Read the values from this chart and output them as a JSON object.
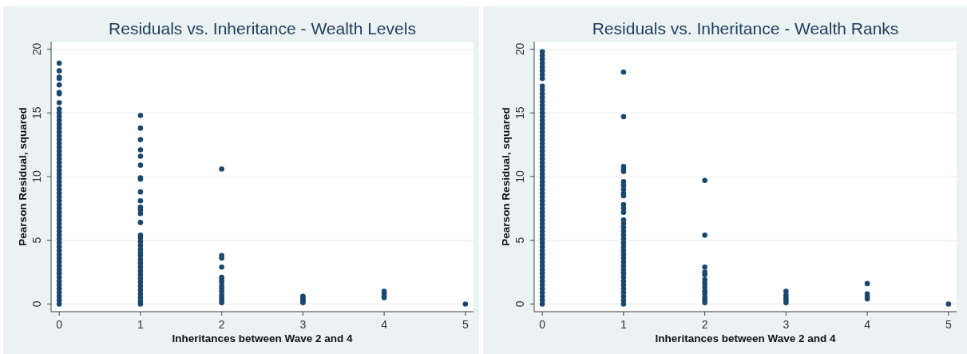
{
  "chart_data": [
    {
      "type": "scatter",
      "title": "Residuals vs. Inheritance - Wealth Levels",
      "xlabel": "Inheritances between Wave 2 and 4",
      "ylabel": "Pearson Residual, squared",
      "color": "#1a476f",
      "marker": "circle",
      "grid": "y",
      "xlim": [
        -0.1,
        5.1
      ],
      "ylim": [
        -0.6,
        20.6
      ],
      "xticks": [
        0,
        1,
        2,
        3,
        4,
        5
      ],
      "yticks": [
        0,
        5,
        10,
        15,
        20
      ],
      "x": [
        0,
        0,
        0,
        0,
        0,
        0,
        0,
        0,
        0,
        0,
        0,
        0,
        0,
        0,
        0,
        0,
        0,
        0,
        0,
        0,
        0,
        0,
        0,
        0,
        0,
        0,
        0,
        0,
        0,
        0,
        0,
        0,
        0,
        0,
        0,
        0,
        0,
        0,
        0,
        0,
        0,
        0,
        0,
        0,
        0,
        0,
        0,
        0,
        0,
        0,
        0,
        0,
        0,
        0,
        0,
        0,
        0,
        0,
        0,
        0,
        1,
        1,
        1,
        1,
        1,
        1,
        1,
        1,
        1,
        1,
        1,
        1,
        1,
        1,
        1,
        1,
        1,
        1,
        1,
        1,
        1,
        1,
        1,
        1,
        1,
        1,
        1,
        1,
        1,
        1,
        1,
        1,
        1,
        1,
        2,
        2,
        2,
        2,
        2,
        2,
        2,
        2,
        2,
        2,
        2,
        2,
        2,
        2,
        3,
        3,
        3,
        3,
        3,
        3,
        4,
        4,
        4,
        4,
        5
      ],
      "values": [
        0,
        0.3,
        0.6,
        0.9,
        1.2,
        1.5,
        1.8,
        2.1,
        2.4,
        2.7,
        3,
        3.3,
        3.6,
        3.9,
        4.2,
        4.5,
        4.8,
        5.1,
        5.4,
        5.7,
        6,
        6.3,
        6.6,
        6.9,
        7.2,
        7.5,
        7.8,
        8.1,
        8.4,
        8.7,
        9,
        9.3,
        9.6,
        9.9,
        10.2,
        10.5,
        10.8,
        11.1,
        11.4,
        11.7,
        12,
        12.3,
        12.6,
        12.9,
        13.2,
        13.5,
        13.8,
        14.1,
        14.4,
        14.7,
        15,
        15.3,
        15.8,
        16.5,
        16.6,
        17.2,
        17.7,
        17.8,
        18.3,
        18.9,
        14.8,
        13.8,
        12.9,
        12.1,
        11.6,
        10.9,
        9.9,
        9.8,
        8.8,
        8.1,
        7.6,
        7.4,
        7.1,
        6.4,
        5.4,
        5.2,
        4.9,
        4.6,
        4.3,
        4,
        3.8,
        3.5,
        3.2,
        2.9,
        2.6,
        2.3,
        2,
        1.7,
        1.4,
        1.1,
        0.8,
        0.5,
        0.2,
        0,
        10.6,
        3.8,
        3.6,
        2.9,
        2.1,
        1.9,
        1.7,
        1.4,
        1.2,
        1,
        0.7,
        0.5,
        0.3,
        0.1,
        0.6,
        0.5,
        0.4,
        0.3,
        0.2,
        0.1,
        1,
        0.8,
        0.6,
        0.5,
        0
      ]
    },
    {
      "type": "scatter",
      "title": "Residuals vs. Inheritance - Wealth Ranks",
      "xlabel": "Inheritances between Wave 2 and 4",
      "ylabel": "Pearson Residual, squared",
      "color": "#1a476f",
      "marker": "circle",
      "grid": "y",
      "xlim": [
        -0.1,
        5.1
      ],
      "ylim": [
        -0.6,
        20.6
      ],
      "xticks": [
        0,
        1,
        2,
        3,
        4,
        5
      ],
      "yticks": [
        0,
        5,
        10,
        15,
        20
      ],
      "x": [
        0,
        0,
        0,
        0,
        0,
        0,
        0,
        0,
        0,
        0,
        0,
        0,
        0,
        0,
        0,
        0,
        0,
        0,
        0,
        0,
        0,
        0,
        0,
        0,
        0,
        0,
        0,
        0,
        0,
        0,
        0,
        0,
        0,
        0,
        0,
        0,
        0,
        0,
        0,
        0,
        0,
        0,
        0,
        0,
        0,
        0,
        0,
        0,
        0,
        0,
        0,
        0,
        0,
        0,
        0,
        0,
        0,
        0,
        0,
        0,
        0,
        0,
        0,
        0,
        0,
        0,
        1,
        1,
        1,
        1,
        1,
        1,
        1,
        1,
        1,
        1,
        1,
        1,
        1,
        1,
        1,
        1,
        1,
        1,
        1,
        1,
        1,
        1,
        1,
        1,
        1,
        1,
        1,
        1,
        1,
        1,
        1,
        1,
        1,
        1,
        1,
        1,
        2,
        2,
        2,
        2,
        2,
        2,
        2,
        2,
        2,
        2,
        2,
        2,
        2,
        3,
        3,
        3,
        3,
        3,
        4,
        4,
        4,
        4,
        5
      ],
      "values": [
        0,
        0.3,
        0.6,
        0.9,
        1.2,
        1.5,
        1.8,
        2.1,
        2.4,
        2.7,
        3,
        3.3,
        3.6,
        3.9,
        4.2,
        4.5,
        4.8,
        5.1,
        5.4,
        5.7,
        6,
        6.3,
        6.6,
        6.9,
        7.2,
        7.5,
        7.8,
        8.1,
        8.4,
        8.7,
        9,
        9.3,
        9.6,
        9.9,
        10.2,
        10.5,
        10.8,
        11.1,
        11.4,
        11.7,
        12,
        12.3,
        12.6,
        12.9,
        13.2,
        13.5,
        13.8,
        14.1,
        14.4,
        14.7,
        15,
        15.3,
        15.6,
        15.9,
        16.2,
        16.5,
        16.8,
        17.1,
        17.7,
        18,
        18.3,
        18.6,
        18.9,
        19.2,
        19.5,
        19.8,
        18.2,
        14.7,
        10.8,
        10.6,
        10.4,
        9.6,
        9.3,
        9,
        8.7,
        8.5,
        7.8,
        7.5,
        7.2,
        6.6,
        6.3,
        6,
        5.7,
        5.4,
        5.1,
        4.8,
        4.5,
        4.2,
        3.9,
        3.6,
        3.3,
        3,
        2.7,
        2.4,
        2.1,
        1.8,
        1.5,
        1.2,
        0.9,
        0.6,
        0.3,
        0,
        9.7,
        5.4,
        2.9,
        2.5,
        2.3,
        1.9,
        1.6,
        1.3,
        1,
        0.8,
        0.5,
        0.3,
        0.1,
        1,
        0.7,
        0.5,
        0.3,
        0.1,
        1.6,
        0.8,
        0.6,
        0.4,
        0
      ]
    }
  ]
}
